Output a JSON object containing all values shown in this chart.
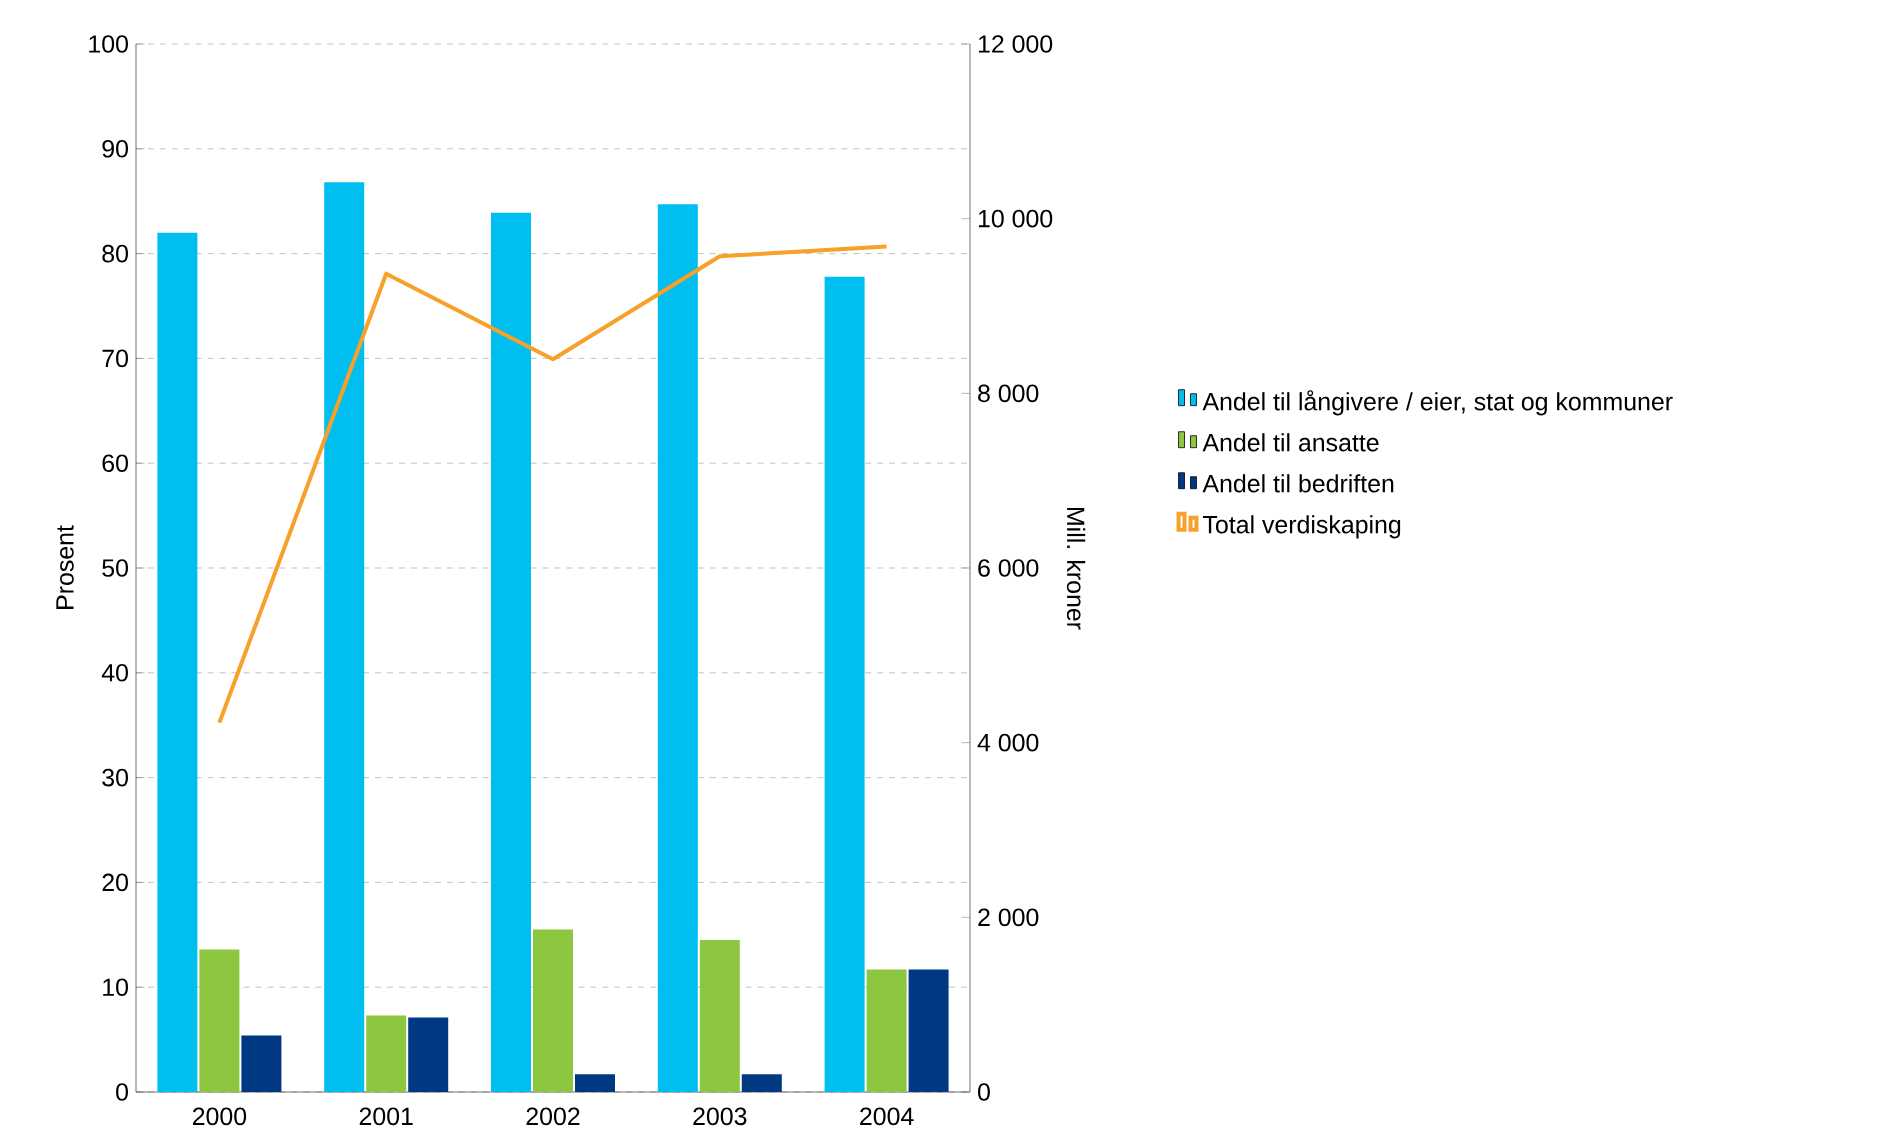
{
  "chart_data": {
    "type": "bar",
    "ylabel": "Prosent",
    "y2label": "Mill. kroner",
    "categories": [
      "2000",
      "2001",
      "2002",
      "2003",
      "2004"
    ],
    "series": [
      {
        "name": "Andel til långivere / eier, stat og kommuner",
        "color": "#00bef0",
        "values": [
          82.0,
          86.8,
          83.9,
          84.7,
          77.8
        ]
      },
      {
        "name": "Andel til ansatte",
        "color": "#8dc63f",
        "values": [
          13.6,
          7.3,
          15.5,
          14.5,
          11.7
        ]
      },
      {
        "name": "Andel til bedriften",
        "color": "#003882",
        "values": [
          5.4,
          7.1,
          1.7,
          1.7,
          11.7
        ]
      },
      {
        "name": "Total verdiskaping",
        "color": "#f7a02a",
        "type": "line",
        "axis": "y2",
        "values": [
          4230,
          9370,
          8390,
          9570,
          9680
        ]
      }
    ],
    "ylim": [
      0,
      100
    ],
    "yticks": [
      0,
      10,
      20,
      30,
      40,
      50,
      60,
      70,
      80,
      90,
      100
    ],
    "y2lim": [
      0,
      12000
    ],
    "y2ticks": [
      0,
      {
        "value": 2000,
        "label": "2 000"
      },
      {
        "value": 4000,
        "label": "4 000"
      },
      {
        "value": 6000,
        "label": "6 000"
      },
      {
        "value": 8000,
        "label": "8 000"
      },
      {
        "value": 10000,
        "label": "10 000"
      },
      {
        "value": 12000,
        "label": "12 000"
      }
    ],
    "grid": "y",
    "legend": "right",
    "marker": "none",
    "line_style": "solid"
  }
}
